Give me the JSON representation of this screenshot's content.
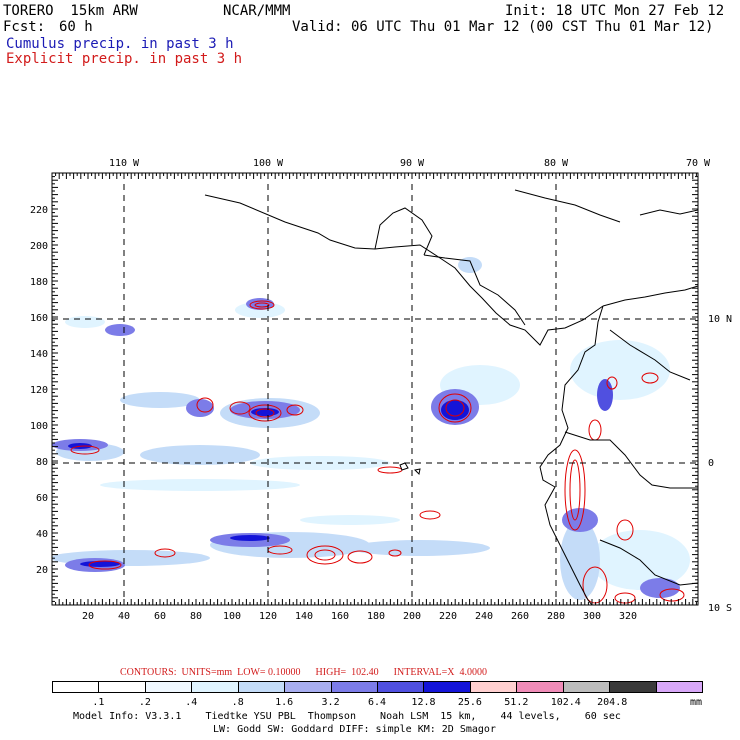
{
  "header": {
    "model": "TORERO  15km ARW",
    "center": "NCAR/MMM",
    "init": "Init: 18 UTC Mon 27 Feb 12",
    "fcst_label": "Fcst:",
    "fcst_value": "60 h",
    "valid": "Valid: 06 UTC Thu 01 Mar 12 (00 CST Thu 01 Mar 12)",
    "field1": "Cumulus precip. in past 3 h",
    "field2": "Explicit precip. in past 3 h"
  },
  "map": {
    "top_lon_labels": [
      "110 W",
      "100 W",
      "90 W",
      "80 W",
      "70 W"
    ],
    "right_lat_labels": [
      "10 N",
      "0",
      "10 S"
    ],
    "y_tick_labels": [
      "220",
      "200",
      "180",
      "160",
      "140",
      "120",
      "100",
      "80",
      "60",
      "40",
      "20"
    ],
    "x_tick_labels": [
      "20",
      "40",
      "60",
      "80",
      "100",
      "120",
      "140",
      "160",
      "180",
      "200",
      "220",
      "240",
      "260",
      "280",
      "300",
      "320"
    ]
  },
  "contours": {
    "text": "CONTOURS:  UNITS=mm  LOW= 0.10000      HIGH=  102.40      INTERVAL=X  4.0000"
  },
  "colorbar": {
    "colors": [
      "#ffffff",
      "#ffffff",
      "#f0f8ff",
      "#e0f4ff",
      "#c4dcf8",
      "#a8aef0",
      "#7c7ce8",
      "#5050e0",
      "#1414d8",
      "#ffd0d0",
      "#f08cb8",
      "#bcbcbc",
      "#3a3a3a",
      "#d8a8f8"
    ],
    "labels": [
      ".1",
      ".2",
      ".4",
      ".8",
      "1.6",
      "3.2",
      "6.4",
      "12.8",
      "25.6",
      "51.2",
      "102.4",
      "204.8"
    ],
    "unit": "mm"
  },
  "footer": {
    "line1": "Model Info: V3.3.1    Tiedtke YSU PBL  Thompson    Noah LSM  15 km,    44 levels,    60 sec",
    "line2": "LW: Godd SW: Goddard DIFF: simple KM: 2D Smagor"
  }
}
